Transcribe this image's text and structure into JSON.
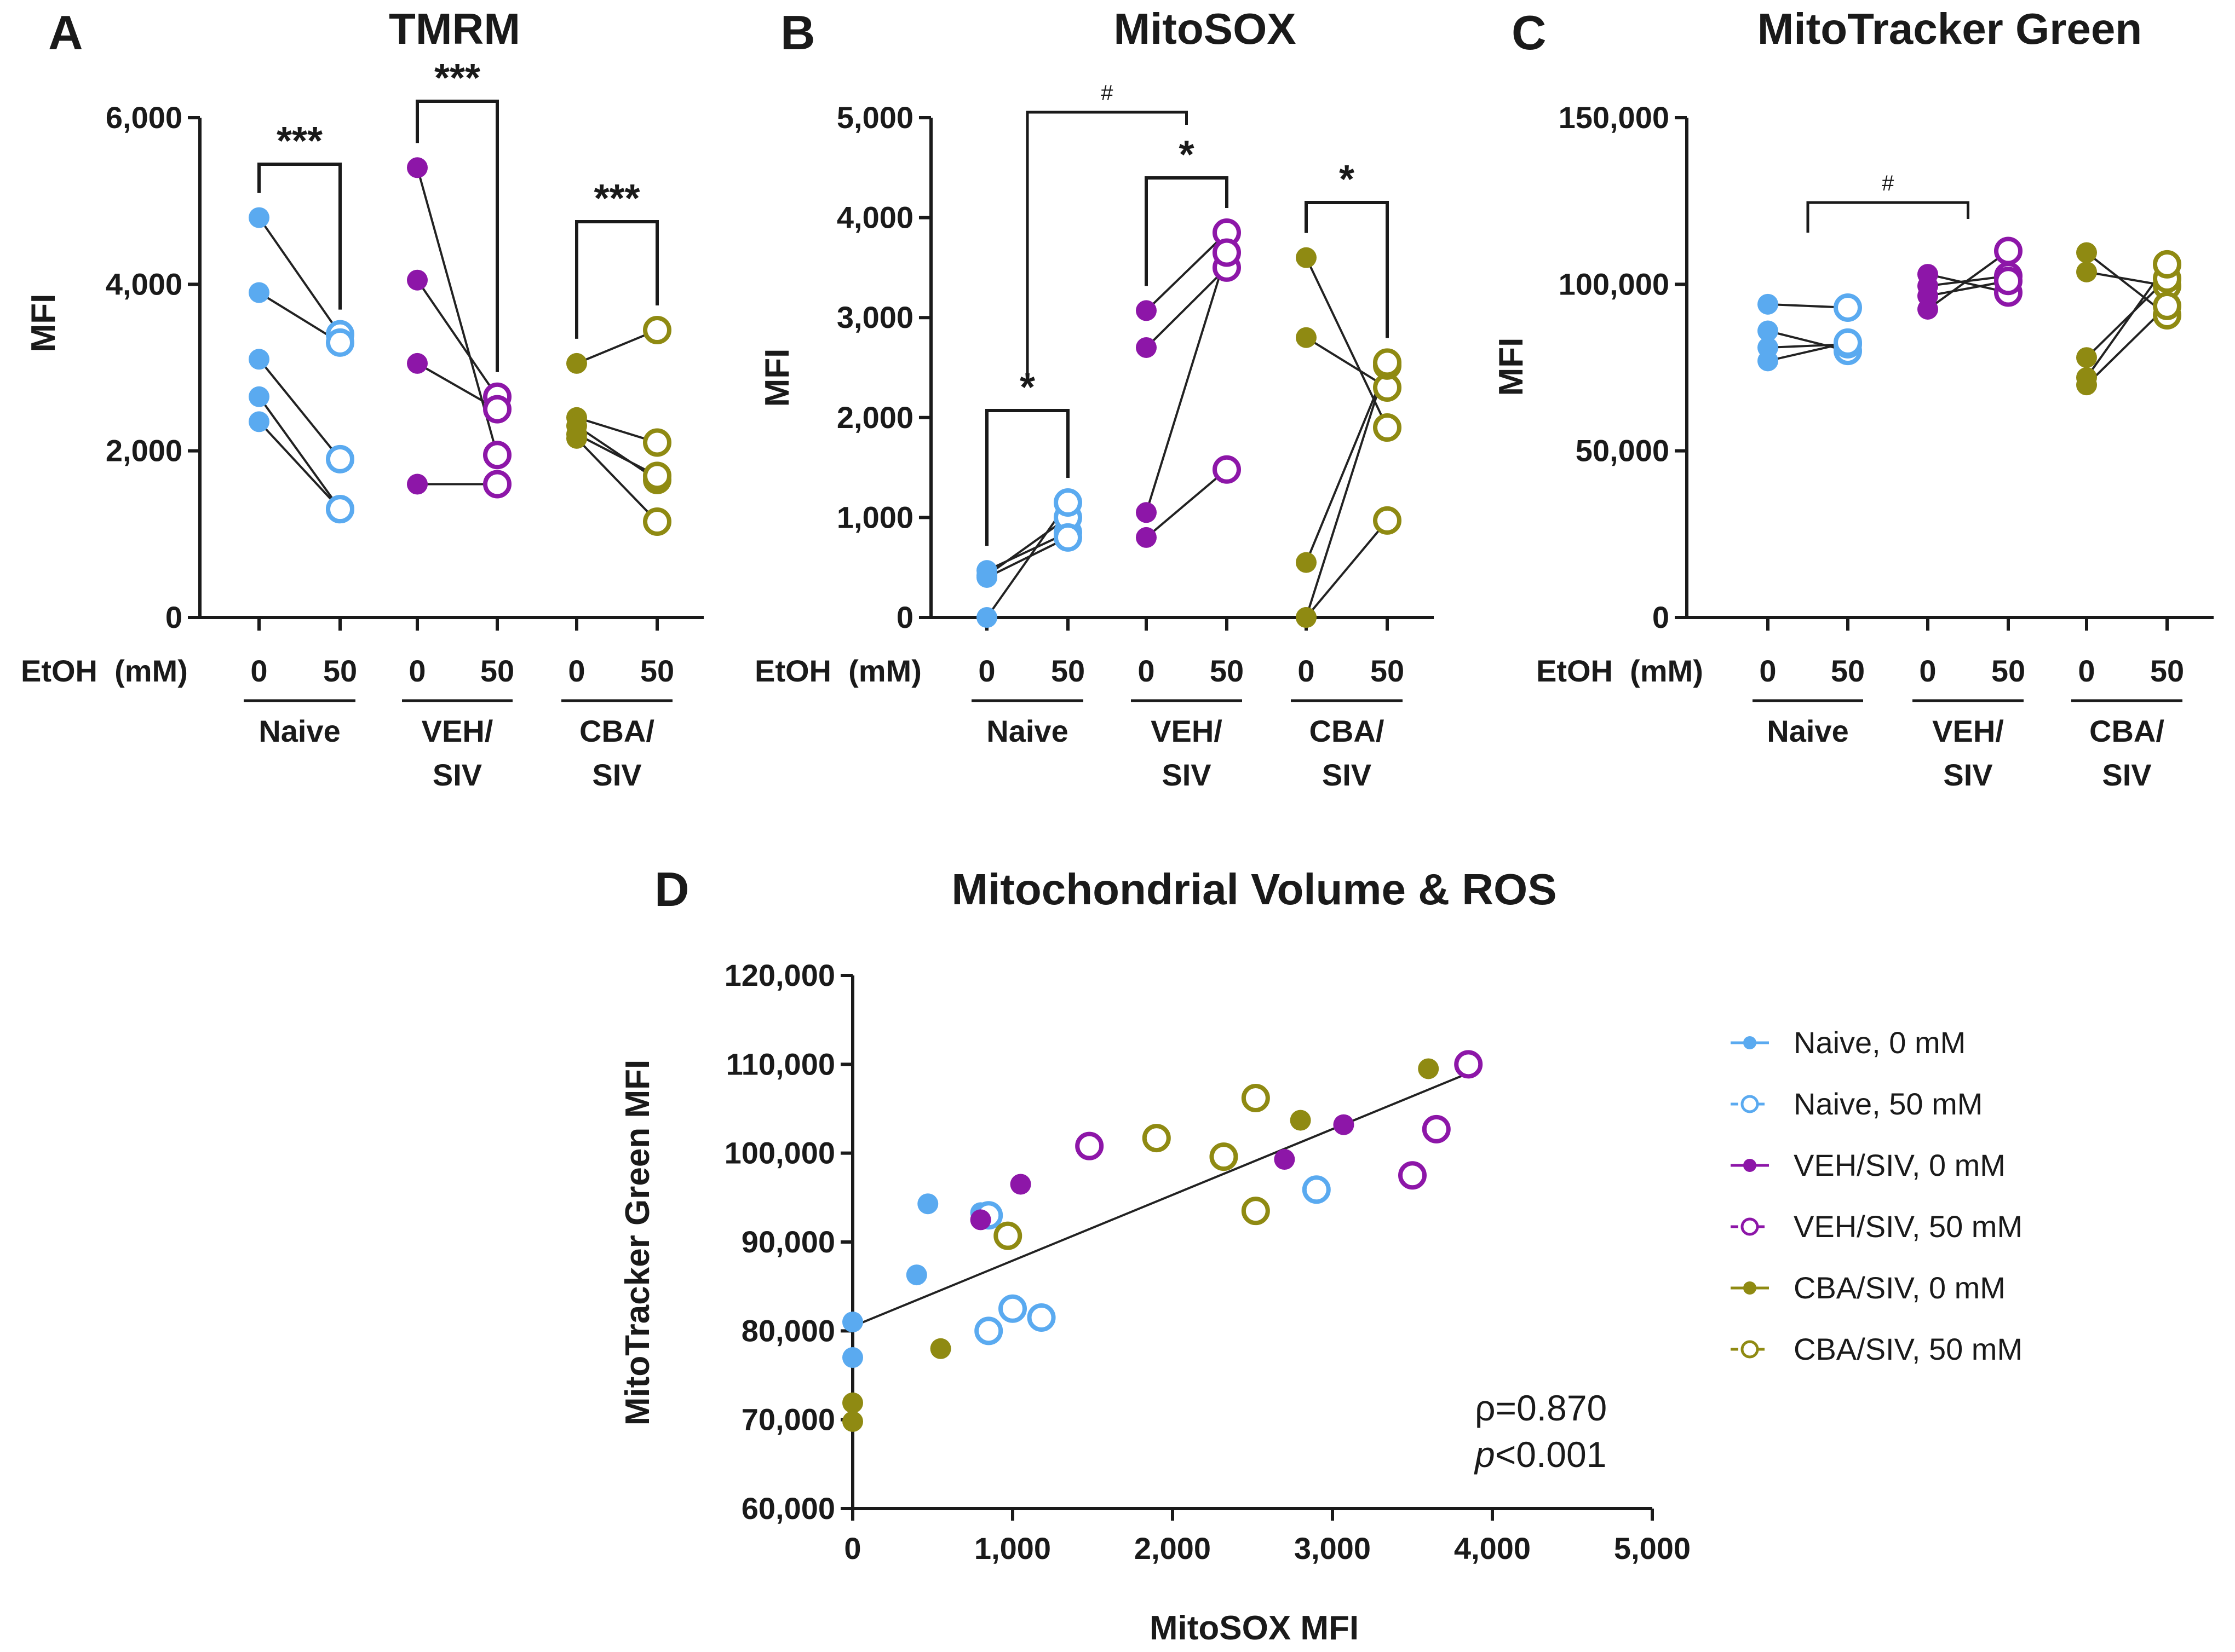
{
  "colors": {
    "naive": "#5aaaf0",
    "veh": "#8d16a8",
    "cba": "#8f8a12",
    "axis": "#1a1a1a"
  },
  "chart_data": [
    {
      "type": "scatter",
      "panel": "A",
      "title": "TMRM",
      "ylabel": "MFI",
      "ylim": [
        0,
        6000
      ],
      "yticks": [
        "0",
        "2,000",
        "4,000",
        "6,000"
      ],
      "yticks_values": [
        0,
        2000,
        4000,
        6000
      ],
      "etoh_label": "EtOH  (mM)",
      "dose_labels": [
        "0",
        "50"
      ],
      "groups": [
        {
          "name": "Naive",
          "label_lines": [
            "Naive"
          ],
          "color_key": "naive",
          "pairs": [
            [
              4800,
              3400
            ],
            [
              3900,
              3300
            ],
            [
              3100,
              1900
            ],
            [
              2650,
              1300
            ],
            [
              2350,
              1300
            ]
          ]
        },
        {
          "name": "VEH/SIV",
          "label_lines": [
            "VEH/",
            "SIV"
          ],
          "color_key": "veh",
          "pairs": [
            [
              5400,
              1950
            ],
            [
              4050,
              2650
            ],
            [
              3050,
              2500
            ],
            [
              1600,
              1600
            ]
          ]
        },
        {
          "name": "CBA/SIV",
          "label_lines": [
            "CBA/",
            "SIV"
          ],
          "color_key": "cba",
          "pairs": [
            [
              3050,
              3450
            ],
            [
              2400,
              2100
            ],
            [
              2300,
              1650
            ],
            [
              2200,
              1700
            ],
            [
              2150,
              1150
            ]
          ]
        }
      ],
      "significance": [
        {
          "text": "***",
          "group": 0
        },
        {
          "text": "***",
          "group": 1
        },
        {
          "text": "***",
          "group": 2
        }
      ]
    },
    {
      "type": "scatter",
      "panel": "B",
      "title": "MitoSOX",
      "ylabel": "MFI",
      "ylim": [
        0,
        5000
      ],
      "yticks": [
        "0",
        "1,000",
        "2,000",
        "3,000",
        "4,000",
        "5,000"
      ],
      "yticks_values": [
        0,
        1000,
        2000,
        3000,
        4000,
        5000
      ],
      "etoh_label": "EtOH  (mM)",
      "dose_labels": [
        "0",
        "50"
      ],
      "groups": [
        {
          "name": "Naive",
          "label_lines": [
            "Naive"
          ],
          "color_key": "naive",
          "pairs": [
            [
              470,
              850
            ],
            [
              420,
              1000
            ],
            [
              400,
              800
            ],
            [
              0,
              1150
            ]
          ]
        },
        {
          "name": "VEH/SIV",
          "label_lines": [
            "VEH/",
            "SIV"
          ],
          "color_key": "veh",
          "pairs": [
            [
              3070,
              3850
            ],
            [
              2700,
              3500
            ],
            [
              1050,
              3650
            ],
            [
              800,
              1480
            ]
          ]
        },
        {
          "name": "CBA/SIV",
          "label_lines": [
            "CBA/",
            "SIV"
          ],
          "color_key": "cba",
          "pairs": [
            [
              3600,
              1900
            ],
            [
              2800,
              2300
            ],
            [
              550,
              2520
            ],
            [
              0,
              2550
            ],
            [
              0,
              970
            ]
          ]
        }
      ],
      "significance": [
        {
          "text": "*",
          "group": 0
        },
        {
          "text": "*",
          "group": 1
        },
        {
          "text": "*",
          "group": 2
        }
      ],
      "cross_significance": {
        "text": "#",
        "from_group": 0,
        "to_group": 1
      }
    },
    {
      "type": "scatter",
      "panel": "C",
      "title": "MitoTracker Green",
      "ylabel": "MFI",
      "ylim": [
        0,
        150000
      ],
      "yticks": [
        "0",
        "50,000",
        "100,000",
        "150,000"
      ],
      "yticks_values": [
        0,
        50000,
        100000,
        150000
      ],
      "etoh_label": "EtOH  (mM)",
      "dose_labels": [
        "0",
        "50"
      ],
      "groups": [
        {
          "name": "Naive",
          "label_lines": [
            "Naive"
          ],
          "color_key": "naive",
          "pairs": [
            [
              94000,
              93000
            ],
            [
              86000,
              80000
            ],
            [
              81000,
              82000
            ],
            [
              77000,
              82500
            ]
          ]
        },
        {
          "name": "VEH/SIV",
          "label_lines": [
            "VEH/",
            "SIV"
          ],
          "color_key": "veh",
          "pairs": [
            [
              103000,
              97500
            ],
            [
              99500,
              102500
            ],
            [
              96500,
              101000
            ],
            [
              92500,
              110000
            ]
          ]
        },
        {
          "name": "CBA/SIV",
          "label_lines": [
            "CBA/",
            "SIV"
          ],
          "color_key": "cba",
          "pairs": [
            [
              109500,
              90700
            ],
            [
              103700,
              99500
            ],
            [
              78000,
              101700
            ],
            [
              72000,
              106000
            ],
            [
              69800,
              93500
            ]
          ]
        }
      ],
      "significance": [],
      "cross_significance": {
        "text": "#",
        "from_group": 0,
        "to_group": 1
      }
    },
    {
      "type": "scatter",
      "panel": "D",
      "title": "Mitochondrial Volume & ROS",
      "xlabel": "MitoSOX MFI",
      "ylabel": "MitoTracker Green MFI",
      "xlim": [
        0,
        5000
      ],
      "ylim": [
        60000,
        120000
      ],
      "xticks": [
        "0",
        "1,000",
        "2,000",
        "3,000",
        "4,000",
        "5,000"
      ],
      "xticks_values": [
        0,
        1000,
        2000,
        3000,
        4000,
        5000
      ],
      "yticks": [
        "60,000",
        "70,000",
        "80,000",
        "90,000",
        "100,000",
        "110,000",
        "120,000"
      ],
      "yticks_values": [
        60000,
        70000,
        80000,
        90000,
        100000,
        110000,
        120000
      ],
      "fit_line": {
        "x": [
          0,
          3850
        ],
        "y": [
          80500,
          109000
        ]
      },
      "stats": {
        "rho": "ρ=0.870",
        "p_italic": "p",
        "p_rest": "<0.001"
      },
      "series": [
        {
          "name": "Naive, 0 mM",
          "color_key": "naive",
          "filled": true,
          "points": [
            [
              470,
              94300
            ],
            [
              400,
              86300
            ],
            [
              0,
              81000
            ],
            [
              0,
              77000
            ],
            [
              800,
              93300
            ]
          ]
        },
        {
          "name": "Naive, 50 mM",
          "color_key": "naive",
          "filled": false,
          "points": [
            [
              850,
              93000
            ],
            [
              850,
              80000
            ],
            [
              1000,
              82500
            ],
            [
              1180,
              81500
            ],
            [
              2900,
              95900
            ]
          ]
        },
        {
          "name": "VEH/SIV, 0 mM",
          "color_key": "veh",
          "filled": true,
          "points": [
            [
              800,
              92500
            ],
            [
              1050,
              96500
            ],
            [
              2700,
              99300
            ],
            [
              3070,
              103200
            ]
          ]
        },
        {
          "name": "VEH/SIV, 50 mM",
          "color_key": "veh",
          "filled": false,
          "points": [
            [
              1480,
              100800
            ],
            [
              3500,
              97500
            ],
            [
              3650,
              102700
            ],
            [
              3850,
              110000
            ]
          ]
        },
        {
          "name": "CBA/SIV, 0 mM",
          "color_key": "cba",
          "filled": true,
          "points": [
            [
              0,
              71900
            ],
            [
              0,
              69800
            ],
            [
              550,
              78000
            ],
            [
              2800,
              103700
            ],
            [
              3600,
              109500
            ]
          ]
        },
        {
          "name": "CBA/SIV, 50 mM",
          "color_key": "cba",
          "filled": false,
          "points": [
            [
              970,
              90700
            ],
            [
              1900,
              101700
            ],
            [
              2320,
              99600
            ],
            [
              2520,
              106200
            ],
            [
              2520,
              93500
            ]
          ]
        }
      ]
    }
  ]
}
